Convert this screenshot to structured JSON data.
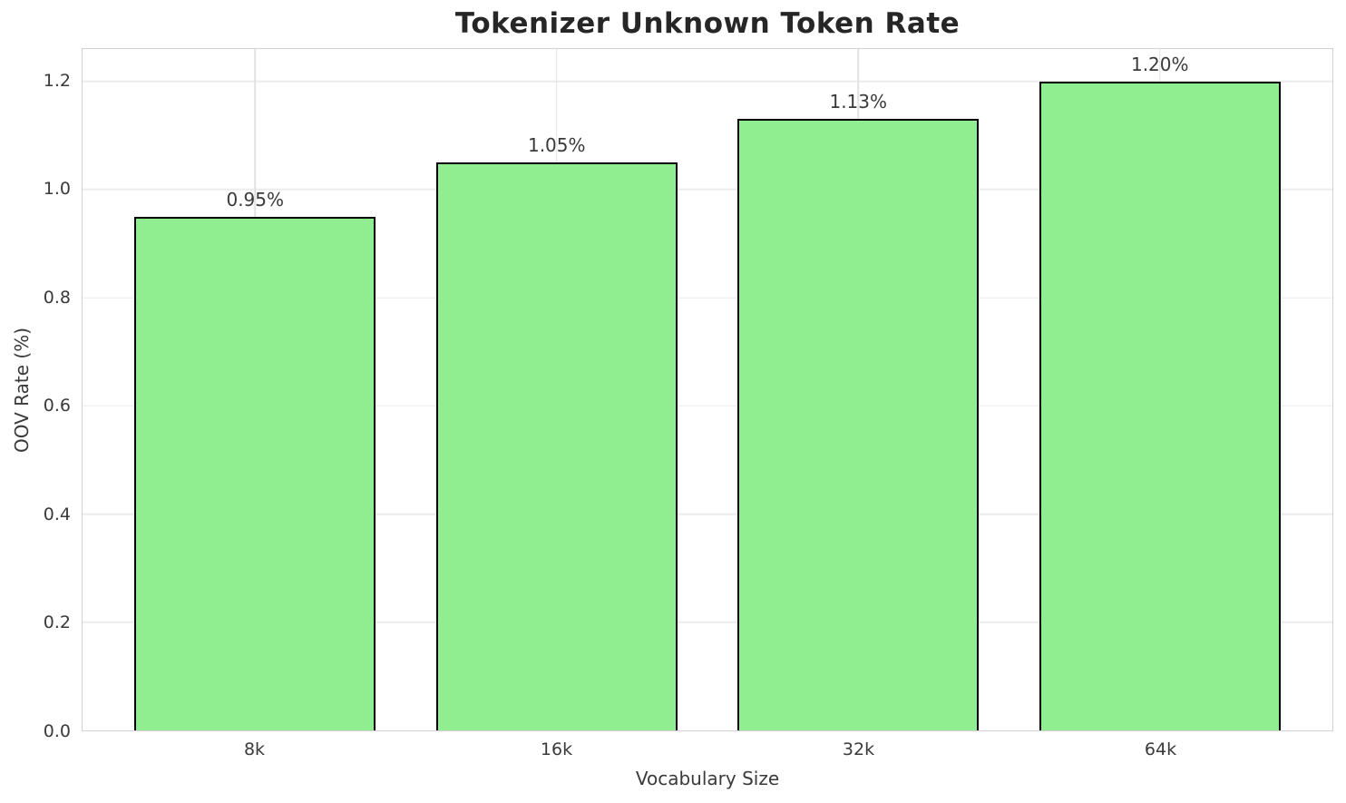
{
  "chart_data": {
    "type": "bar",
    "title": "Tokenizer Unknown Token Rate",
    "xlabel": "Vocabulary Size",
    "ylabel": "OOV Rate (%)",
    "categories": [
      "8k",
      "16k",
      "32k",
      "64k"
    ],
    "values": [
      0.95,
      1.05,
      1.13,
      1.2
    ],
    "bar_labels": [
      "0.95%",
      "1.05%",
      "1.13%",
      "1.20%"
    ],
    "ytick_labels": [
      "0.0",
      "0.2",
      "0.4",
      "0.6",
      "0.8",
      "1.0",
      "1.2"
    ],
    "ytick_values": [
      0.0,
      0.2,
      0.4,
      0.6,
      0.8,
      1.0,
      1.2
    ],
    "ylim": [
      0,
      1.26
    ],
    "grid": true,
    "legend_position": "none",
    "colors": {
      "bar_fill": "#90EE90",
      "bar_edge": "#000000",
      "h_grid": "#ececec",
      "v_grid": "#e2e2e2",
      "spine": "#d2d2d2",
      "tick_text": "#3a3a3a",
      "title_text": "#262626"
    }
  }
}
